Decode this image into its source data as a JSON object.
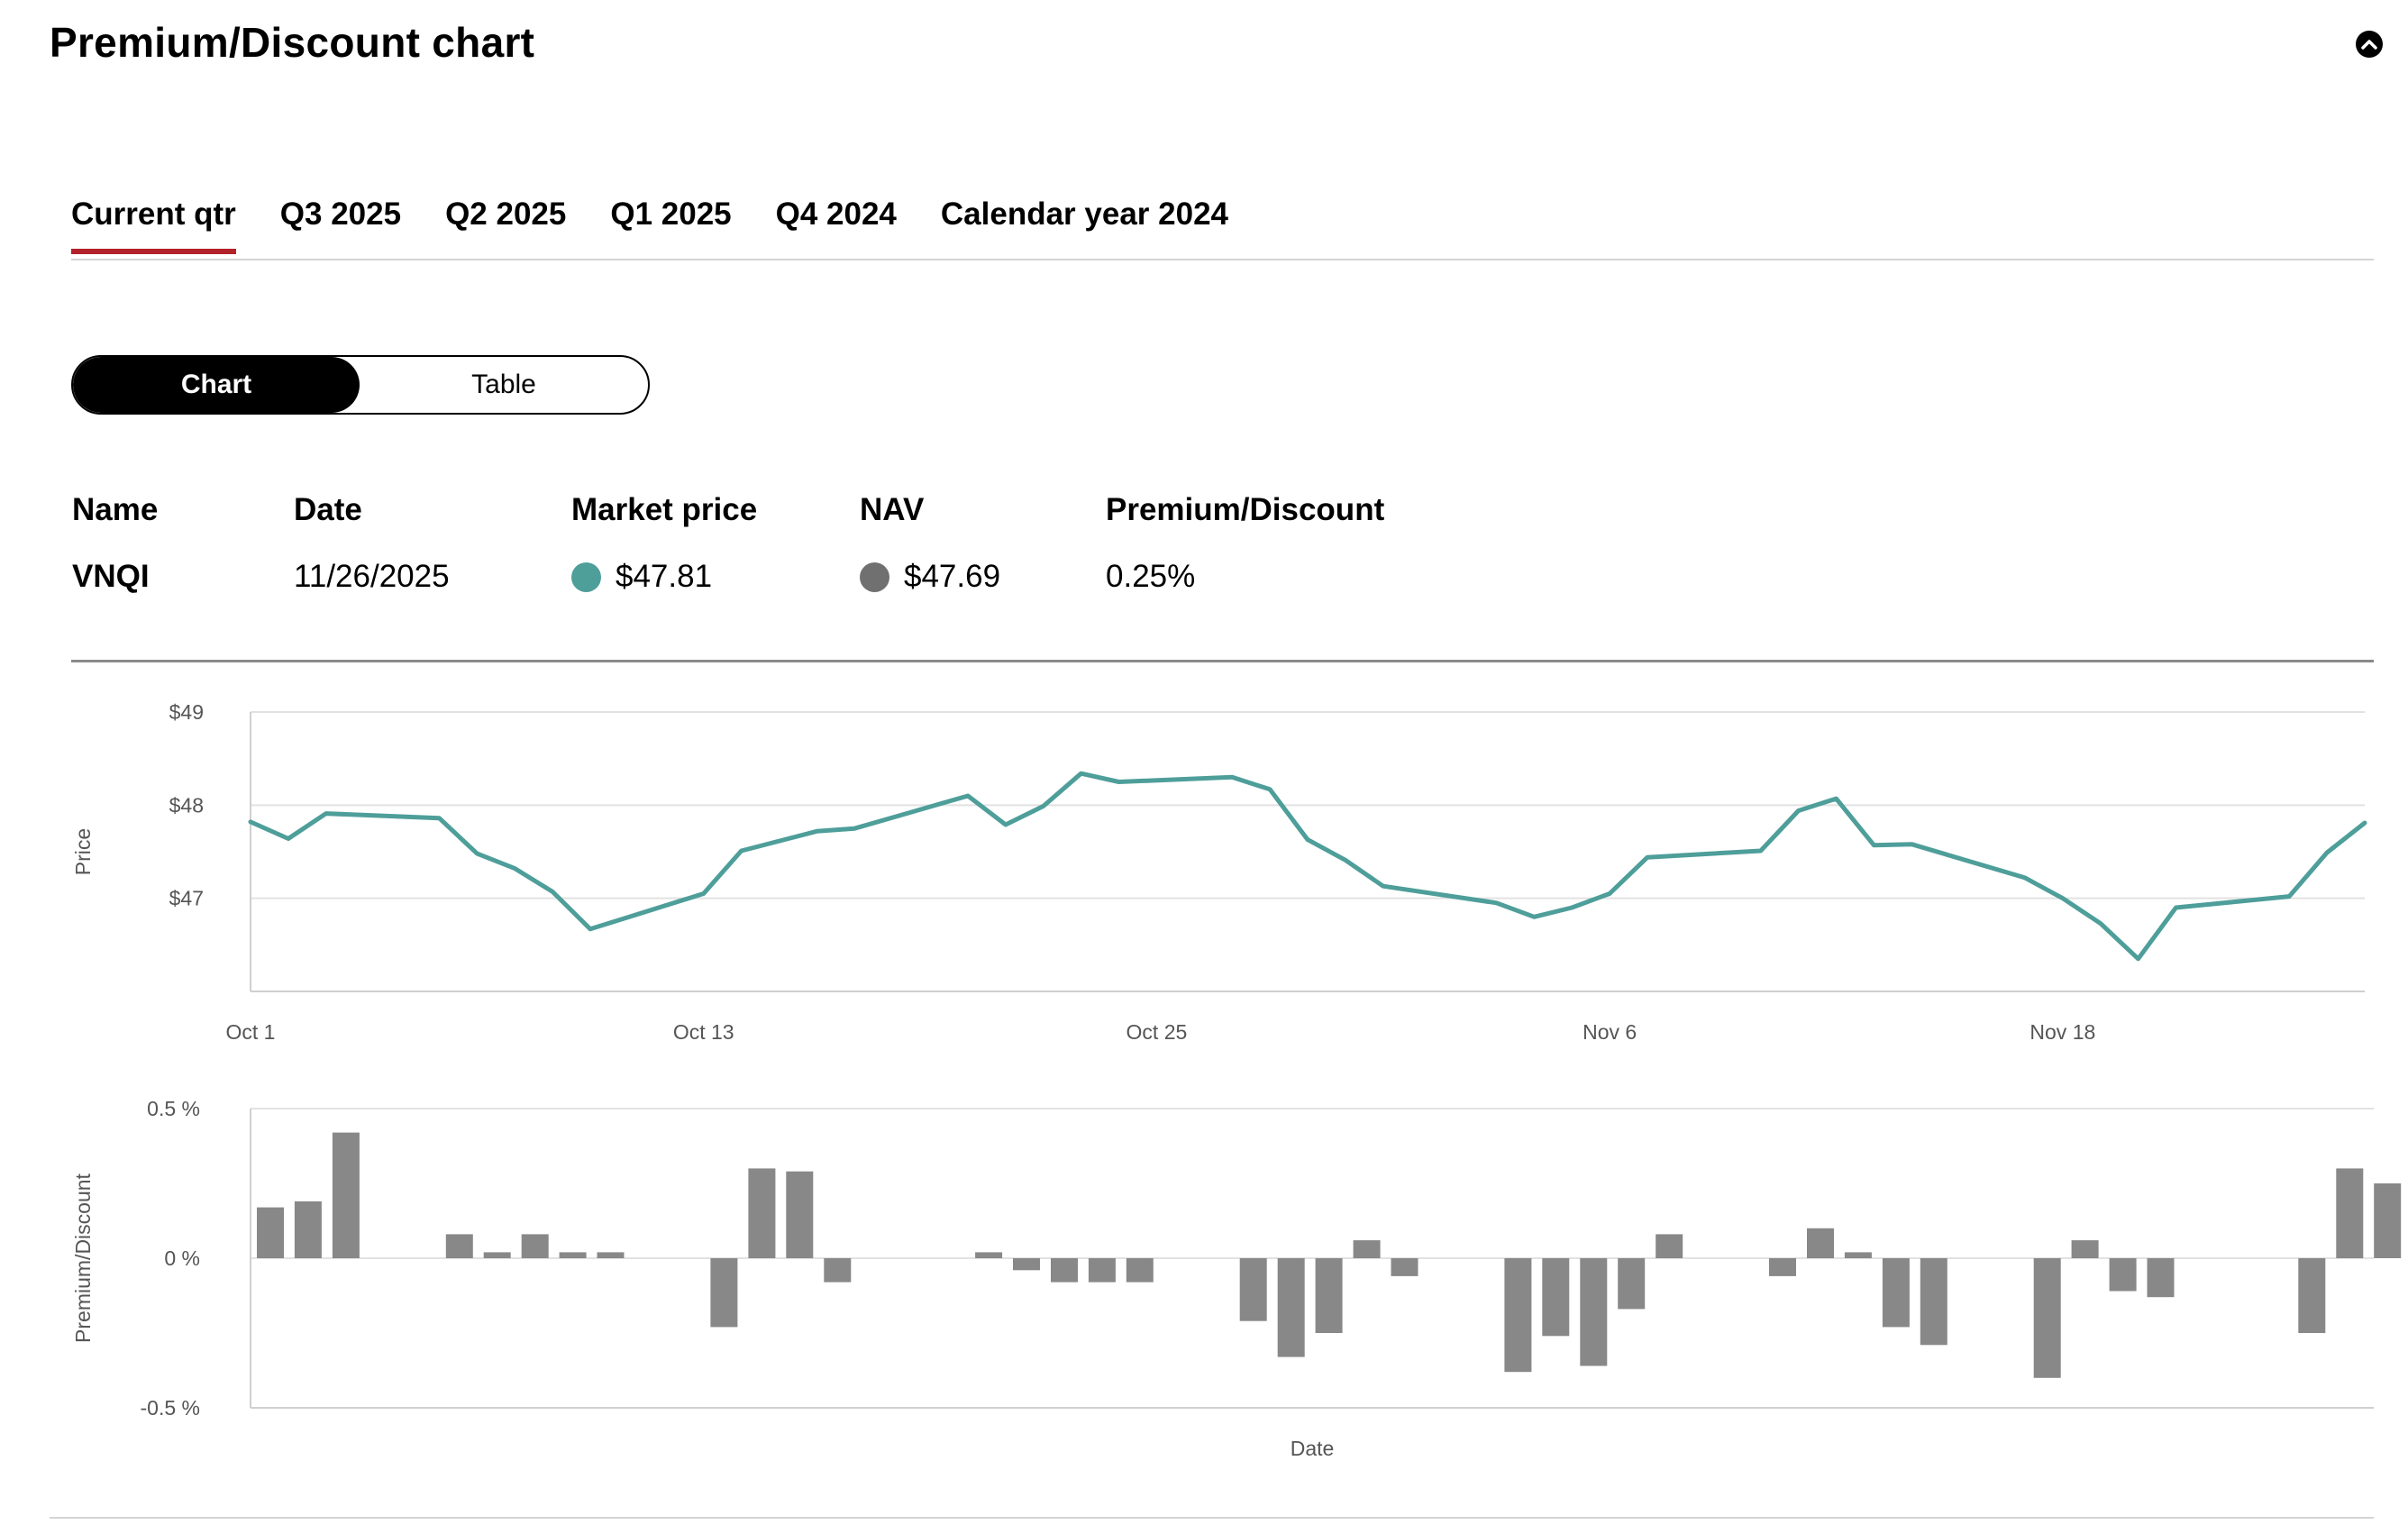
{
  "page": {
    "title": "Premium/Discount chart"
  },
  "tabs": [
    {
      "label": "Current qtr",
      "active": true
    },
    {
      "label": "Q3 2025"
    },
    {
      "label": "Q2 2025"
    },
    {
      "label": "Q1 2025"
    },
    {
      "label": "Q4 2024"
    },
    {
      "label": "Calendar year 2024"
    }
  ],
  "view_toggle": {
    "chart_label": "Chart",
    "table_label": "Table",
    "selected": "Chart"
  },
  "summary": {
    "headers": {
      "name": "Name",
      "date": "Date",
      "market_price": "Market price",
      "nav": "NAV",
      "premium_discount": "Premium/Discount"
    },
    "name": "VNQI",
    "date": "11/26/2025",
    "market_price": "$47.81",
    "nav": "$47.69",
    "premium_discount": "0.25%"
  },
  "colors": {
    "accent": "#b3222a",
    "market_price": "#4e9e9a",
    "nav": "#707070",
    "bar": "#888888"
  },
  "chart_data": [
    {
      "type": "line",
      "ylabel": "Price",
      "y_ticks": [
        "$47",
        "$48",
        "$49"
      ],
      "ylim": [
        46,
        49
      ],
      "x_ticks": [
        "Oct 1",
        "Oct 13",
        "Oct 25",
        "Nov 6",
        "Nov 18"
      ],
      "x_range_days": [
        0,
        56
      ],
      "grid": true,
      "series": [
        {
          "color": "#4e9e9a",
          "points": [
            [
              0,
              47.82
            ],
            [
              1,
              47.64
            ],
            [
              2,
              47.91
            ],
            [
              5,
              47.86
            ],
            [
              6,
              47.48
            ],
            [
              7,
              47.32
            ],
            [
              8,
              47.07
            ],
            [
              9,
              46.67
            ],
            [
              12,
              47.05
            ],
            [
              13,
              47.51
            ],
            [
              15,
              47.72
            ],
            [
              16,
              47.75
            ],
            [
              19,
              48.1
            ],
            [
              20,
              47.79
            ],
            [
              21,
              47.99
            ],
            [
              22,
              48.34
            ],
            [
              23,
              48.25
            ],
            [
              26,
              48.3
            ],
            [
              27,
              48.17
            ],
            [
              28,
              47.63
            ],
            [
              29,
              47.41
            ],
            [
              30,
              47.13
            ],
            [
              33,
              46.95
            ],
            [
              34,
              46.8
            ],
            [
              35,
              46.9
            ],
            [
              36,
              47.05
            ],
            [
              37,
              47.44
            ],
            [
              40,
              47.51
            ],
            [
              41,
              47.94
            ],
            [
              42,
              48.07
            ],
            [
              43,
              47.57
            ],
            [
              44,
              47.58
            ],
            [
              47,
              47.22
            ],
            [
              48,
              47.0
            ],
            [
              49,
              46.73
            ],
            [
              50,
              46.35
            ],
            [
              51,
              46.9
            ],
            [
              54,
              47.02
            ],
            [
              55,
              47.49
            ],
            [
              56,
              47.81
            ]
          ]
        }
      ]
    },
    {
      "type": "bar",
      "ylabel": "Premium/Discount",
      "xlabel": "Date",
      "y_ticks": [
        "-0.5 %",
        "0 %",
        "0.5 %"
      ],
      "ylim": [
        -0.5,
        0.5
      ],
      "unit": "%",
      "grid": true,
      "values": [
        [
          0,
          0.17
        ],
        [
          1,
          0.19
        ],
        [
          2,
          0.42
        ],
        [
          5,
          0.08
        ],
        [
          6,
          0.02
        ],
        [
          7,
          0.08
        ],
        [
          8,
          0.02
        ],
        [
          9,
          0.02
        ],
        [
          12,
          -0.23
        ],
        [
          13,
          0.3
        ],
        [
          14,
          0.29
        ],
        [
          15,
          -0.08
        ],
        [
          19,
          0.02
        ],
        [
          20,
          -0.04
        ],
        [
          21,
          -0.08
        ],
        [
          22,
          -0.08
        ],
        [
          23,
          -0.08
        ],
        [
          26,
          -0.21
        ],
        [
          27,
          -0.33
        ],
        [
          28,
          -0.25
        ],
        [
          29,
          0.06
        ],
        [
          30,
          -0.06
        ],
        [
          33,
          -0.38
        ],
        [
          34,
          -0.26
        ],
        [
          35,
          -0.36
        ],
        [
          36,
          -0.17
        ],
        [
          37,
          0.08
        ],
        [
          40,
          -0.06
        ],
        [
          41,
          0.1
        ],
        [
          42,
          0.02
        ],
        [
          43,
          -0.23
        ],
        [
          44,
          -0.29
        ],
        [
          47,
          -0.4
        ],
        [
          48,
          0.06
        ],
        [
          49,
          -0.11
        ],
        [
          50,
          -0.13
        ],
        [
          54,
          -0.25
        ],
        [
          55,
          0.3
        ],
        [
          56,
          0.25
        ]
      ]
    }
  ]
}
